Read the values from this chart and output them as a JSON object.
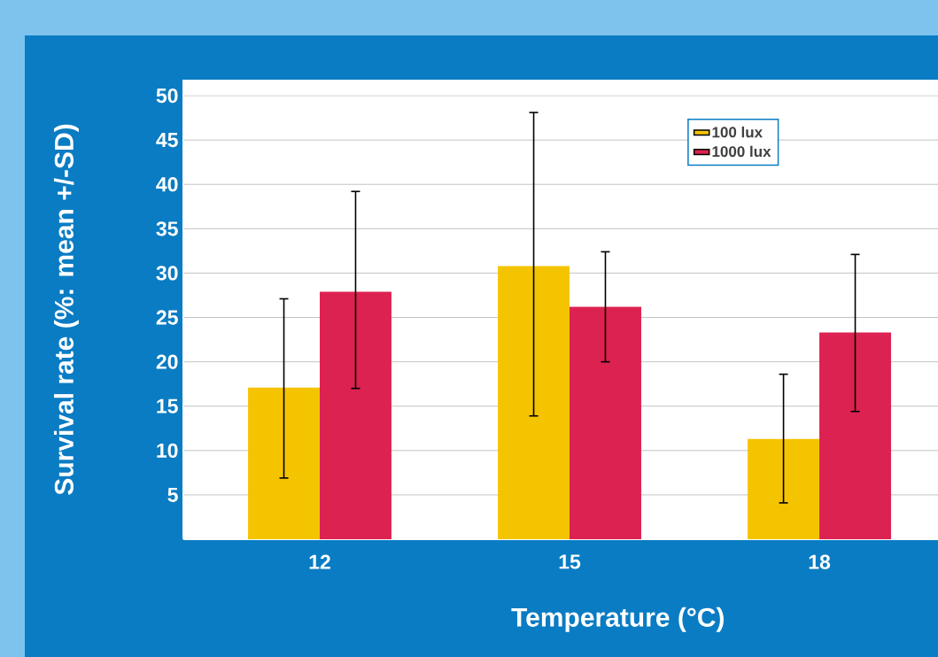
{
  "chart_data": {
    "type": "bar",
    "xlabel": "Temperature (°C)",
    "ylabel": "Survival rate (%: mean +/-SD)",
    "categories": [
      "12",
      "15",
      "18"
    ],
    "series": [
      {
        "name": "100 lux",
        "color": "#f5c400",
        "values": [
          17.1,
          30.8,
          11.3
        ],
        "errors": [
          [
            6.9,
            27.1
          ],
          [
            13.9,
            48.1
          ],
          [
            4.1,
            18.6
          ]
        ]
      },
      {
        "name": "1000 lux",
        "color": "#dc2250",
        "values": [
          27.9,
          26.2,
          23.3
        ],
        "errors": [
          [
            17.0,
            39.2
          ],
          [
            20.0,
            32.4
          ],
          [
            14.4,
            32.1
          ]
        ]
      }
    ],
    "ylim": [
      0,
      51.8
    ],
    "yticks": [
      5,
      10,
      15,
      20,
      25,
      30,
      35,
      40,
      45,
      50
    ],
    "grid": "y",
    "legend": "top right"
  }
}
